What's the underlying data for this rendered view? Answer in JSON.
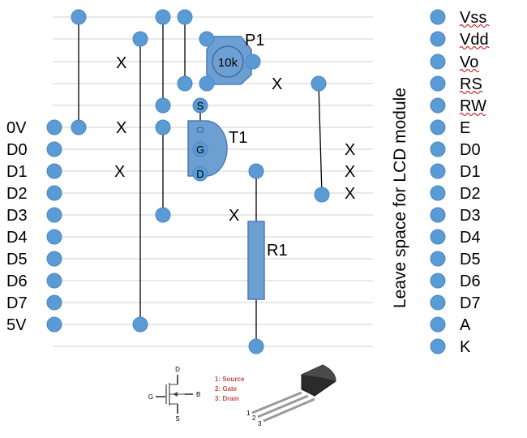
{
  "left_labels": [
    "0V",
    "D0",
    "D1",
    "D2",
    "D3",
    "D4",
    "D5",
    "D6",
    "D7",
    "5V"
  ],
  "lcd_labels": [
    "Vss",
    "Vdd",
    "Vo",
    "RS",
    "RW",
    "E",
    "D0",
    "D1",
    "D2",
    "D3",
    "D4",
    "D5",
    "D6",
    "D7",
    "A",
    "K"
  ],
  "lcd_note": "Leave space for LCD module",
  "components": {
    "pot_name": "P1",
    "pot_value": "10k",
    "fet_name": "T1",
    "fet_pins": [
      "S",
      "G",
      "D"
    ],
    "resistor_name": "R1"
  },
  "cut_marker": "X",
  "pinout": {
    "symbol_labels": [
      "D",
      "G",
      "B",
      "S"
    ],
    "legend": [
      "1: Source",
      "2: Gate",
      "3: Drain"
    ],
    "leg_numbers": [
      "1",
      "2",
      "3"
    ]
  },
  "colors": {
    "pin": "#5b9bd5",
    "component": "#6d9fd3",
    "legend_text": "#c0504d"
  }
}
